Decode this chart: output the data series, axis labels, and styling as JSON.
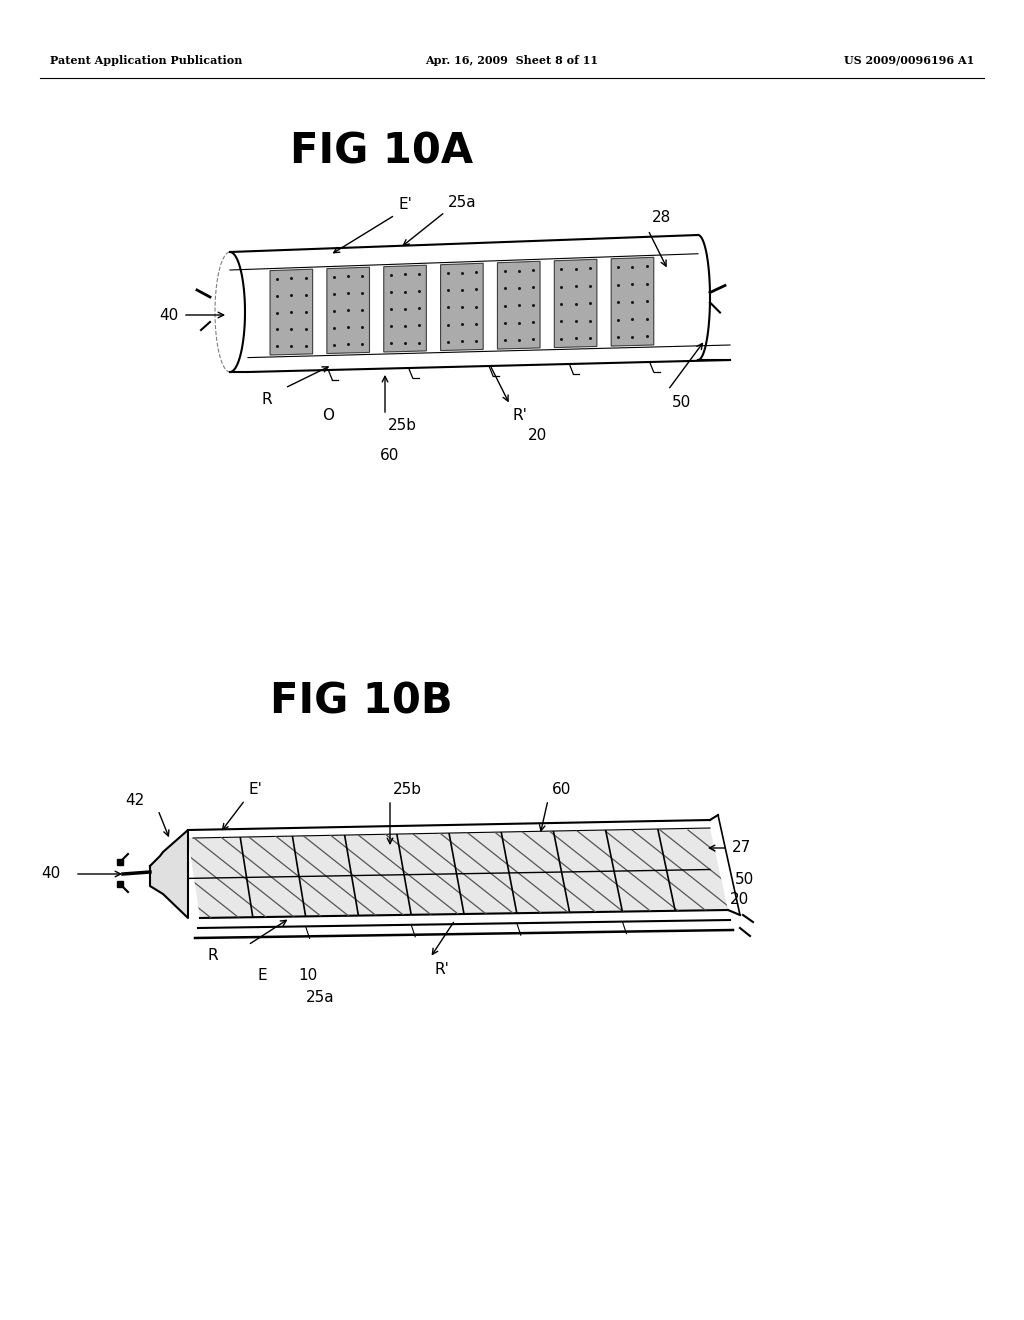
{
  "bg_color": "#ffffff",
  "header_left": "Patent Application Publication",
  "header_center": "Apr. 16, 2009  Sheet 8 of 11",
  "header_right": "US 2009/0096196 A1",
  "fig10a_title": "FIG 10A",
  "fig10b_title": "FIG 10B",
  "text_color": "#000000",
  "line_color": "#000000"
}
